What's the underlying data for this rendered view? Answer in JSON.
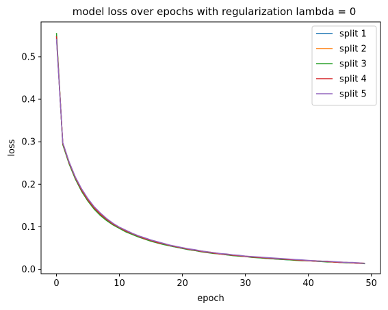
{
  "chart_data": {
    "type": "line",
    "title": "model loss over epochs with regularization lambda = 0",
    "xlabel": "epoch",
    "ylabel": "loss",
    "xlim": [
      -2.45,
      51.45
    ],
    "ylim": [
      -0.0105,
      0.582
    ],
    "xticks": [
      0,
      10,
      20,
      30,
      40,
      50
    ],
    "yticks": [
      0.0,
      0.1,
      0.2,
      0.3,
      0.4,
      0.5
    ],
    "xtick_labels": [
      "0",
      "10",
      "20",
      "30",
      "40",
      "50"
    ],
    "ytick_labels": [
      "0.0",
      "0.1",
      "0.2",
      "0.3",
      "0.4",
      "0.5"
    ],
    "grid": false,
    "legend_position": "top-right",
    "x": [
      0,
      1,
      2,
      3,
      4,
      5,
      6,
      7,
      8,
      9,
      10,
      11,
      12,
      13,
      14,
      15,
      16,
      17,
      18,
      19,
      20,
      21,
      22,
      23,
      24,
      25,
      26,
      27,
      28,
      29,
      30,
      31,
      32,
      33,
      34,
      35,
      36,
      37,
      38,
      39,
      40,
      41,
      42,
      43,
      44,
      45,
      46,
      47,
      48,
      49
    ],
    "series": [
      {
        "name": "split 1",
        "color": "#1f77b4",
        "values": [
          0.545,
          0.295,
          0.25,
          0.214,
          0.185,
          0.162,
          0.143,
          0.128,
          0.116,
          0.106,
          0.097,
          0.09,
          0.083,
          0.077,
          0.072,
          0.067,
          0.063,
          0.059,
          0.055,
          0.052,
          0.049,
          0.046,
          0.044,
          0.042,
          0.04,
          0.038,
          0.036,
          0.034,
          0.033,
          0.031,
          0.03,
          0.029,
          0.028,
          0.026,
          0.025,
          0.024,
          0.023,
          0.022,
          0.022,
          0.021,
          0.02,
          0.019,
          0.018,
          0.018,
          0.017,
          0.016,
          0.016,
          0.015,
          0.014,
          0.014
        ]
      },
      {
        "name": "split 2",
        "color": "#ff7f0e",
        "values": [
          0.55,
          0.297,
          0.252,
          0.216,
          0.187,
          0.164,
          0.145,
          0.13,
          0.117,
          0.107,
          0.098,
          0.091,
          0.084,
          0.078,
          0.073,
          0.068,
          0.064,
          0.06,
          0.056,
          0.053,
          0.05,
          0.047,
          0.045,
          0.043,
          0.041,
          0.039,
          0.037,
          0.035,
          0.033,
          0.032,
          0.031,
          0.029,
          0.028,
          0.027,
          0.026,
          0.025,
          0.024,
          0.023,
          0.022,
          0.021,
          0.02,
          0.02,
          0.019,
          0.018,
          0.017,
          0.017,
          0.016,
          0.015,
          0.015,
          0.014
        ]
      },
      {
        "name": "split 3",
        "color": "#2ca02c",
        "values": [
          0.556,
          0.293,
          0.248,
          0.212,
          0.183,
          0.16,
          0.141,
          0.126,
          0.114,
          0.104,
          0.096,
          0.088,
          0.082,
          0.076,
          0.071,
          0.066,
          0.062,
          0.058,
          0.055,
          0.052,
          0.049,
          0.046,
          0.044,
          0.041,
          0.039,
          0.037,
          0.036,
          0.034,
          0.032,
          0.031,
          0.03,
          0.028,
          0.027,
          0.026,
          0.025,
          0.024,
          0.023,
          0.022,
          0.021,
          0.02,
          0.02,
          0.019,
          0.018,
          0.017,
          0.017,
          0.016,
          0.015,
          0.015,
          0.014,
          0.013
        ]
      },
      {
        "name": "split 4",
        "color": "#d62728",
        "values": [
          0.548,
          0.296,
          0.251,
          0.215,
          0.186,
          0.163,
          0.144,
          0.129,
          0.117,
          0.106,
          0.098,
          0.09,
          0.084,
          0.078,
          0.072,
          0.068,
          0.063,
          0.06,
          0.056,
          0.053,
          0.05,
          0.047,
          0.045,
          0.042,
          0.04,
          0.038,
          0.036,
          0.035,
          0.033,
          0.032,
          0.03,
          0.029,
          0.028,
          0.027,
          0.026,
          0.025,
          0.024,
          0.023,
          0.022,
          0.021,
          0.02,
          0.019,
          0.019,
          0.018,
          0.017,
          0.016,
          0.016,
          0.015,
          0.014,
          0.014
        ]
      },
      {
        "name": "split 5",
        "color": "#9467bd",
        "values": [
          0.542,
          0.298,
          0.253,
          0.217,
          0.189,
          0.166,
          0.147,
          0.132,
          0.119,
          0.108,
          0.099,
          0.092,
          0.085,
          0.079,
          0.074,
          0.069,
          0.065,
          0.061,
          0.057,
          0.054,
          0.051,
          0.048,
          0.046,
          0.043,
          0.041,
          0.039,
          0.037,
          0.036,
          0.034,
          0.033,
          0.031,
          0.03,
          0.029,
          0.028,
          0.027,
          0.026,
          0.025,
          0.024,
          0.023,
          0.022,
          0.021,
          0.02,
          0.019,
          0.019,
          0.018,
          0.017,
          0.016,
          0.016,
          0.015,
          0.014
        ]
      }
    ]
  }
}
